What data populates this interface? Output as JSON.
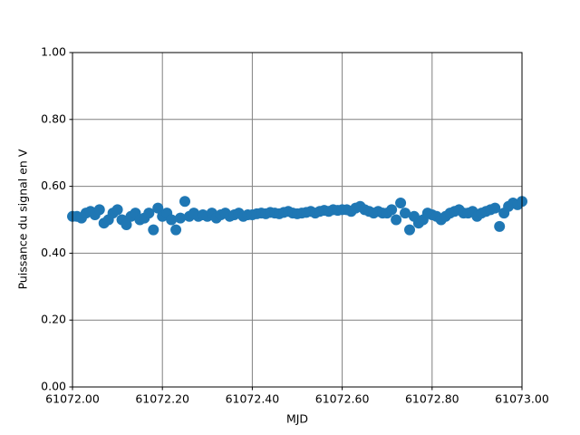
{
  "chart_data": {
    "type": "scatter",
    "xlabel": "MJD",
    "ylabel": "Puissance du signal en V",
    "color": "#1f77b4",
    "grid": true,
    "xlim": [
      61072.0,
      61073.0
    ],
    "xticks": [
      {
        "value": 61072.0,
        "label": "61072.00"
      },
      {
        "value": 61072.2,
        "label": "61072.20"
      },
      {
        "value": 61072.4,
        "label": "61072.40"
      },
      {
        "value": 61072.6,
        "label": "61072.60"
      },
      {
        "value": 61072.8,
        "label": "61072.80"
      },
      {
        "value": 61073.0,
        "label": "61073.00"
      }
    ],
    "ylim": [
      0,
      1
    ],
    "yticks": [
      {
        "value": 0,
        "label": "0.00"
      },
      {
        "value": 0.2,
        "label": "0.20"
      },
      {
        "value": 0.4,
        "label": "0.40"
      },
      {
        "value": 0.6,
        "label": "0.60"
      },
      {
        "value": 0.8,
        "label": "0.80"
      },
      {
        "value": 1,
        "label": "1.00"
      }
    ],
    "x": [
      61072.0,
      61072.01,
      61072.02,
      61072.03,
      61072.04,
      61072.05,
      61072.06,
      61072.07,
      61072.08,
      61072.09,
      61072.1,
      61072.11,
      61072.12,
      61072.13,
      61072.14,
      61072.15,
      61072.16,
      61072.17,
      61072.18,
      61072.19,
      61072.2,
      61072.21,
      61072.22,
      61072.23,
      61072.24,
      61072.25,
      61072.26,
      61072.27,
      61072.28,
      61072.29,
      61072.3,
      61072.31,
      61072.32,
      61072.33,
      61072.34,
      61072.35,
      61072.36,
      61072.37,
      61072.38,
      61072.39,
      61072.4,
      61072.41,
      61072.42,
      61072.43,
      61072.44,
      61072.45,
      61072.46,
      61072.47,
      61072.48,
      61072.49,
      61072.5,
      61072.51,
      61072.52,
      61072.53,
      61072.54,
      61072.55,
      61072.56,
      61072.57,
      61072.58,
      61072.59,
      61072.6,
      61072.61,
      61072.62,
      61072.63,
      61072.64,
      61072.65,
      61072.66,
      61072.67,
      61072.68,
      61072.69,
      61072.7,
      61072.71,
      61072.72,
      61072.73,
      61072.74,
      61072.75,
      61072.76,
      61072.77,
      61072.78,
      61072.79,
      61072.8,
      61072.81,
      61072.82,
      61072.83,
      61072.84,
      61072.85,
      61072.86,
      61072.87,
      61072.88,
      61072.89,
      61072.9,
      61072.91,
      61072.92,
      61072.93,
      61072.94,
      61072.95,
      61072.96,
      61072.97,
      61072.98,
      61072.99,
      61073.0
    ],
    "values": [
      0.51,
      0.51,
      0.505,
      0.52,
      0.525,
      0.515,
      0.53,
      0.49,
      0.5,
      0.52,
      0.53,
      0.5,
      0.485,
      0.51,
      0.52,
      0.5,
      0.505,
      0.52,
      0.47,
      0.535,
      0.51,
      0.52,
      0.5,
      0.47,
      0.505,
      0.555,
      0.51,
      0.52,
      0.51,
      0.515,
      0.51,
      0.52,
      0.505,
      0.515,
      0.52,
      0.51,
      0.515,
      0.52,
      0.51,
      0.515,
      0.515,
      0.518,
      0.52,
      0.518,
      0.522,
      0.52,
      0.518,
      0.522,
      0.525,
      0.52,
      0.518,
      0.52,
      0.522,
      0.525,
      0.52,
      0.525,
      0.528,
      0.525,
      0.53,
      0.528,
      0.53,
      0.53,
      0.525,
      0.535,
      0.54,
      0.53,
      0.525,
      0.52,
      0.525,
      0.52,
      0.52,
      0.53,
      0.5,
      0.55,
      0.52,
      0.47,
      0.51,
      0.49,
      0.5,
      0.52,
      0.515,
      0.51,
      0.5,
      0.51,
      0.52,
      0.525,
      0.53,
      0.52,
      0.52,
      0.525,
      0.51,
      0.52,
      0.525,
      0.53,
      0.535,
      0.48,
      0.52,
      0.54,
      0.55,
      0.545,
      0.555
    ]
  }
}
